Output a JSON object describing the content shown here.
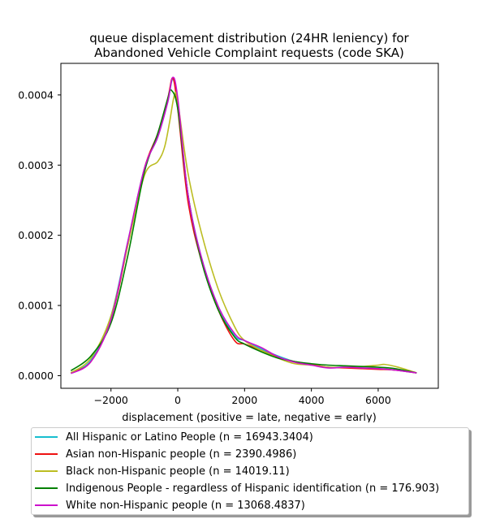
{
  "chart_data": {
    "type": "line",
    "title": [
      "queue displacement distribution (24HR leniency) for",
      "Abandoned Vehicle Complaint  requests (code SKA)"
    ],
    "xlabel": "displacement (positive = late, negative = early)",
    "ylabel": "",
    "xlim": [
      -3500,
      7800
    ],
    "ylim": [
      -1.8e-05,
      0.000445
    ],
    "xticks": [
      -2000,
      0,
      2000,
      4000,
      6000
    ],
    "xtick_labels": [
      "−2000",
      "0",
      "2000",
      "4000",
      "6000"
    ],
    "yticks": [
      0,
      0.0001,
      0.0002,
      0.0003,
      0.0004
    ],
    "ytick_labels": [
      "0.0000",
      "0.0001",
      "0.0002",
      "0.0003",
      "0.0004"
    ],
    "grid": false,
    "legend_position": "below",
    "series": [
      {
        "name": "All Hispanic or Latino People (n = 16943.3404)",
        "color": "#17becf",
        "x": [
          -3200,
          -2600,
          -2000,
          -1500,
          -1000,
          -600,
          -300,
          -150,
          0,
          300,
          700,
          1200,
          1700,
          2000,
          2500,
          3000,
          3500,
          4000,
          4500,
          5000,
          5500,
          6000,
          6500,
          7150
        ],
        "y": [
          4e-06,
          2.2e-05,
          8.5e-05,
          0.00019,
          0.000295,
          0.00034,
          0.00039,
          0.000422,
          0.00039,
          0.00026,
          0.00017,
          0.0001,
          5.7e-05,
          5e-05,
          3.8e-05,
          2.8e-05,
          2e-05,
          1.6e-05,
          1.2e-05,
          1.2e-05,
          1.1e-05,
          1e-05,
          8e-06,
          4e-06
        ]
      },
      {
        "name": "Asian non-Hispanic people (n = 2390.4986)",
        "color": "#ee1111",
        "x": [
          -3200,
          -2600,
          -2000,
          -1500,
          -1000,
          -600,
          -300,
          -150,
          0,
          300,
          700,
          1200,
          1700,
          2000,
          2500,
          3000,
          3500,
          4000,
          4500,
          5000,
          5500,
          6000,
          6500,
          7150
        ],
        "y": [
          4e-06,
          2e-05,
          8e-05,
          0.000185,
          0.000295,
          0.000345,
          0.000395,
          0.000424,
          0.00038,
          0.00025,
          0.000165,
          9.5e-05,
          5e-05,
          4.5e-05,
          3.6e-05,
          2.6e-05,
          2e-05,
          1.6e-05,
          1.2e-05,
          1.1e-05,
          1e-05,
          9e-06,
          8e-06,
          4e-06
        ]
      },
      {
        "name": "Black non-Hispanic people (n = 14019.11)",
        "color": "#bcbd22",
        "x": [
          -3200,
          -2600,
          -2000,
          -1500,
          -1000,
          -600,
          -400,
          -250,
          -100,
          0,
          300,
          700,
          1200,
          1700,
          2000,
          2500,
          3000,
          3500,
          4000,
          4500,
          5000,
          5500,
          6000,
          6200,
          6600,
          7150
        ],
        "y": [
          4e-06,
          2.5e-05,
          8.5e-05,
          0.000185,
          0.000285,
          0.000305,
          0.000325,
          0.00036,
          0.0004,
          0.00039,
          0.00029,
          0.000205,
          0.000125,
          7e-05,
          5e-05,
          3.6e-05,
          2.5e-05,
          1.7e-05,
          1.5e-05,
          1.2e-05,
          1.2e-05,
          1.3e-05,
          1.5e-05,
          1.6e-05,
          1.2e-05,
          4e-06
        ]
      },
      {
        "name": "Indigenous People - regardless of Hispanic identification (n = 176.903)",
        "color": "#008000",
        "x": [
          -3200,
          -2600,
          -2000,
          -1500,
          -1000,
          -600,
          -300,
          -200,
          0,
          300,
          700,
          1200,
          1700,
          2000,
          2500,
          3000,
          3500,
          4000,
          4500,
          5000,
          5500,
          6000,
          6500,
          7150
        ],
        "y": [
          7e-06,
          2.8e-05,
          7.5e-05,
          0.00017,
          0.00029,
          0.000345,
          0.000395,
          0.000407,
          0.00038,
          0.00026,
          0.000165,
          9.5e-05,
          5.5e-05,
          4.5e-05,
          3.4e-05,
          2.5e-05,
          2e-05,
          1.7e-05,
          1.5e-05,
          1.4e-05,
          1.3e-05,
          1.2e-05,
          1e-05,
          4e-06
        ]
      },
      {
        "name": "White non-Hispanic people (n = 13068.4837)",
        "color": "#cc11cc",
        "x": [
          -3200,
          -2600,
          -2000,
          -1500,
          -1000,
          -600,
          -300,
          -150,
          0,
          300,
          700,
          1200,
          1700,
          2000,
          2500,
          3000,
          3500,
          4000,
          4500,
          5000,
          5500,
          6000,
          6500,
          7150
        ],
        "y": [
          3e-06,
          2e-05,
          8e-05,
          0.00019,
          0.000295,
          0.00034,
          0.00039,
          0.000425,
          0.000395,
          0.00026,
          0.00017,
          0.0001,
          6e-05,
          5e-05,
          4e-05,
          2.7e-05,
          1.9e-05,
          1.5e-05,
          1.1e-05,
          1.2e-05,
          1.1e-05,
          1e-05,
          8e-06,
          4e-06
        ]
      }
    ]
  }
}
